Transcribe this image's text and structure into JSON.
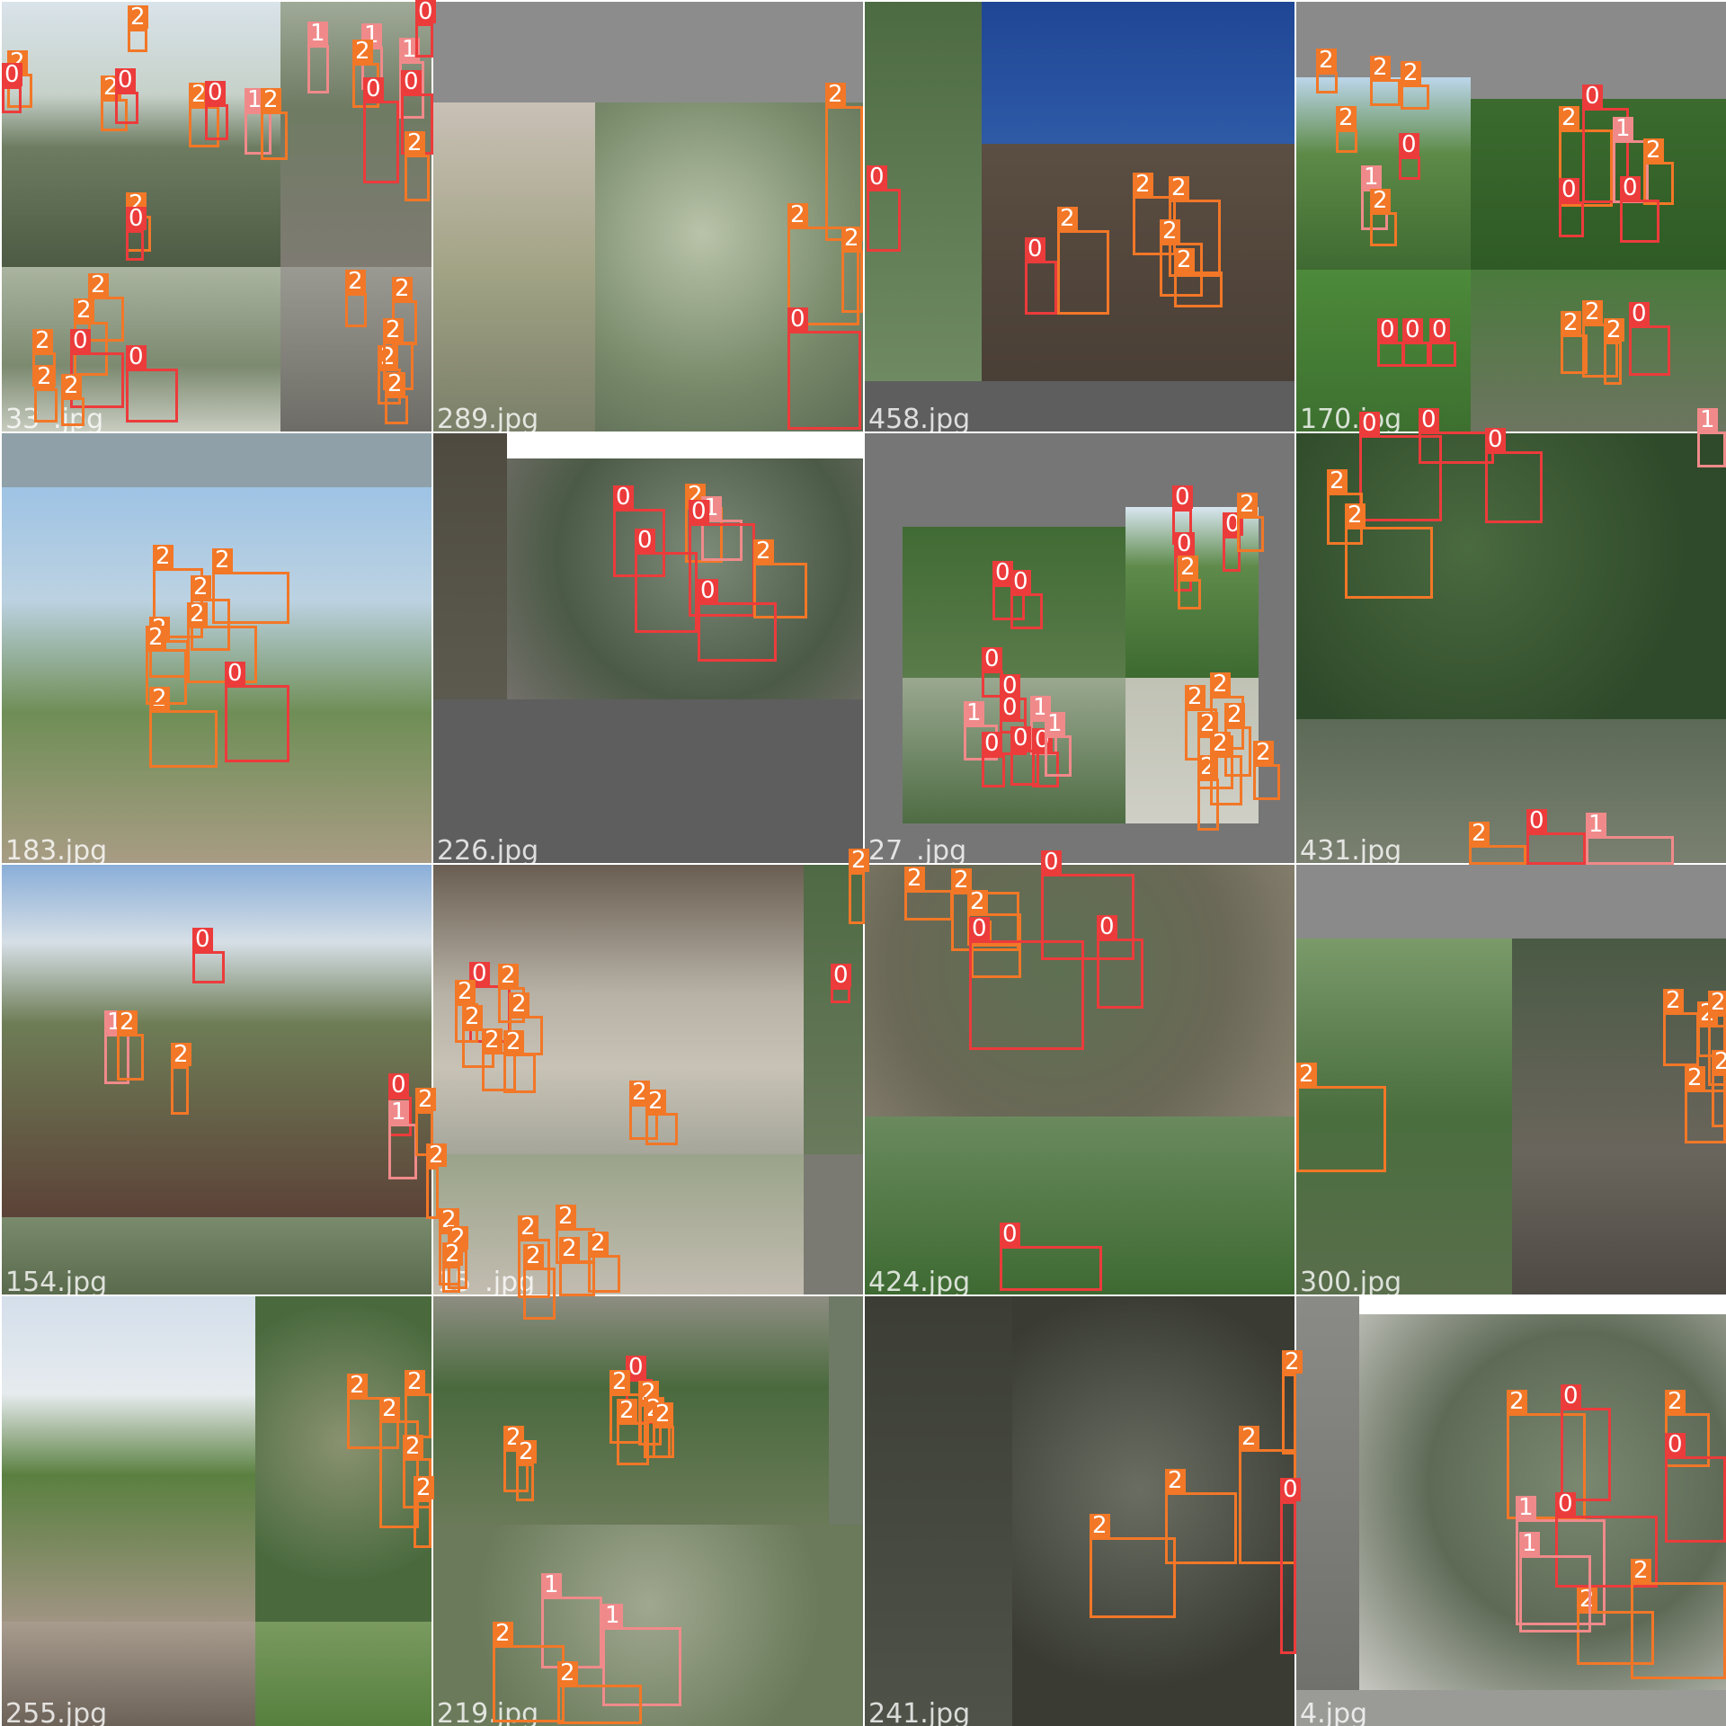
{
  "mosaic": {
    "rows": 4,
    "cols": 4,
    "classes": {
      "0": {
        "label": "0",
        "color": "#ec3b3b"
      },
      "1": {
        "label": "1",
        "color": "#f08a8a"
      },
      "2": {
        "label": "2",
        "color": "#f27727"
      }
    },
    "palette": {
      "leaf": "#4b6e3c",
      "leaf_light": "#86a86c",
      "soil": "#6b5e52",
      "sky": "#a8c6e6",
      "sky_blue": "#24499a",
      "gray": "#7a7a7a",
      "blur": "#9c9f8c",
      "berry_blue": "#5c6c9c",
      "berry_green": "#cfd59a"
    },
    "tiles": [
      {
        "filename": "33_.jpg"
      },
      {
        "filename": "289.jpg"
      },
      {
        "filename": "458.jpg"
      },
      {
        "filename": "170.jpg"
      },
      {
        "filename": "183.jpg"
      },
      {
        "filename": "226.jpg"
      },
      {
        "filename": "27_.jpg"
      },
      {
        "filename": "431.jpg"
      },
      {
        "filename": "154.jpg"
      },
      {
        "filename": "15_.jpg"
      },
      {
        "filename": "424.jpg"
      },
      {
        "filename": "300.jpg"
      },
      {
        "filename": "255.jpg"
      },
      {
        "filename": "219.jpg"
      },
      {
        "filename": "241.jpg"
      },
      {
        "filename": "4.jpg"
      }
    ]
  }
}
